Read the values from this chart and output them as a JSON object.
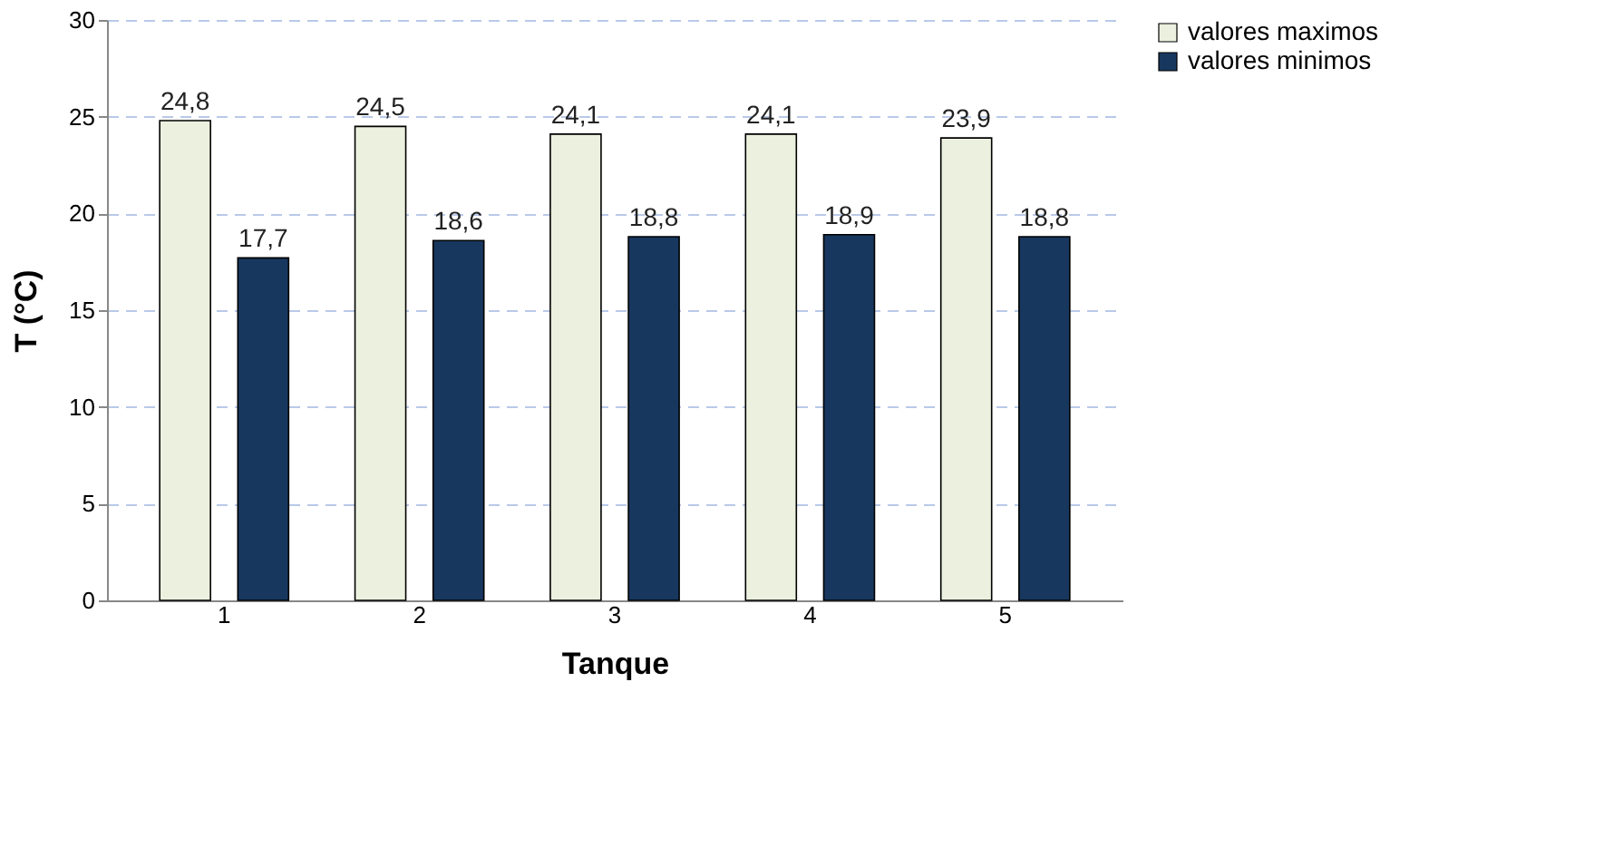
{
  "chart_data": {
    "type": "bar",
    "xlabel": "Tanque",
    "ylabel": "T (°C)",
    "categories": [
      "1",
      "2",
      "3",
      "4",
      "5"
    ],
    "series": [
      {
        "name": "valores maximos",
        "color": "#ebf1de",
        "values": [
          24.8,
          24.5,
          24.1,
          24.1,
          23.9
        ],
        "value_labels": [
          "24,8",
          "24,5",
          "24,1",
          "24,1",
          "23,9"
        ]
      },
      {
        "name": "valores minimos",
        "color": "#17375e",
        "values": [
          17.7,
          18.6,
          18.8,
          18.9,
          18.8
        ],
        "value_labels": [
          "17,7",
          "18,6",
          "18,8",
          "18,9",
          "18,8"
        ]
      }
    ],
    "ylim": [
      0,
      30
    ],
    "yticks": [
      0,
      5,
      10,
      15,
      20,
      25,
      30
    ],
    "grid": "y",
    "legend": "right"
  }
}
